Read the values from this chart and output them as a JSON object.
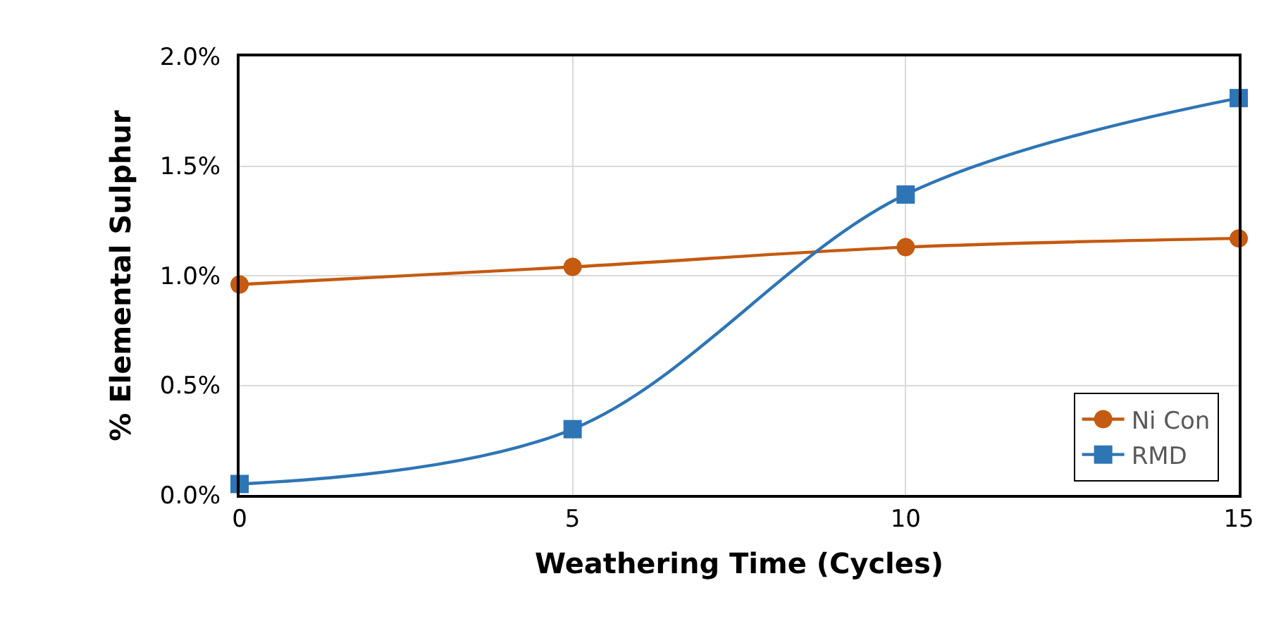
{
  "chart_data": {
    "type": "line",
    "xlabel": "Weathering Time (Cycles)",
    "ylabel": "% Elemental Sulphur",
    "x": [
      0,
      5,
      10,
      15
    ],
    "series": [
      {
        "name": "Ni Con",
        "color": "#c55a11",
        "marker": "circle",
        "values": [
          0.96,
          1.04,
          1.13,
          1.17
        ]
      },
      {
        "name": "RMD",
        "color": "#2e75b6",
        "marker": "square",
        "values": [
          0.05,
          0.3,
          1.37,
          1.81
        ]
      }
    ],
    "xlim": [
      0,
      15
    ],
    "xticks": [
      0,
      5,
      10,
      15
    ],
    "ylim": [
      0,
      2.0
    ],
    "yticks": [
      {
        "value": 0,
        "label": "0.0%"
      },
      {
        "value": 0.5,
        "label": "0.5%"
      },
      {
        "value": 1.0,
        "label": "1.0%"
      },
      {
        "value": 1.5,
        "label": "1.5%"
      },
      {
        "value": 2.0,
        "label": "2.0%"
      }
    ],
    "grid": true,
    "legend": "bottom right",
    "line_style": "solid"
  }
}
